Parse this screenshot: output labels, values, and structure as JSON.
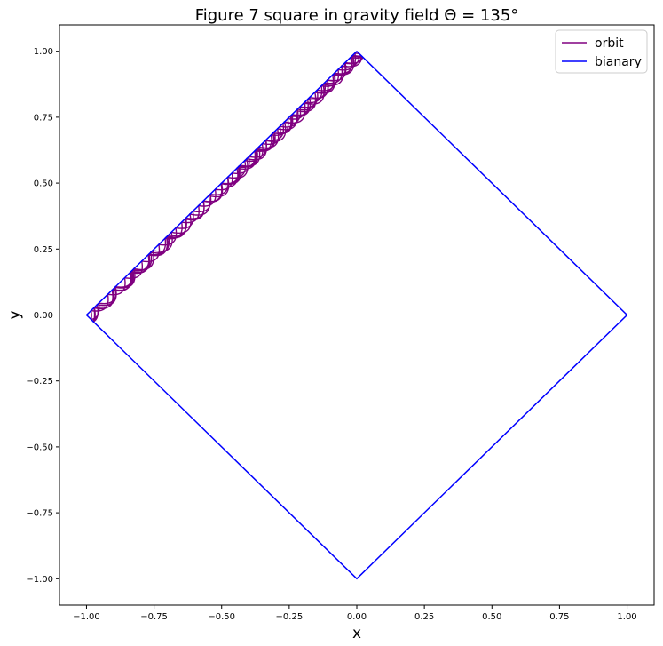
{
  "chart_data": {
    "type": "line",
    "title": "Figure 7 square in gravity field Θ = 135°",
    "xlabel": "x",
    "ylabel": "y",
    "xlim": [
      -1.1,
      1.1
    ],
    "ylim": [
      -1.1,
      1.1
    ],
    "xticks": [
      -1.0,
      -0.75,
      -0.5,
      -0.25,
      0.0,
      0.25,
      0.5,
      0.75,
      1.0
    ],
    "xtick_labels": [
      "−1.00",
      "−0.75",
      "−0.50",
      "−0.25",
      "0.00",
      "0.25",
      "0.50",
      "0.75",
      "1.00"
    ],
    "yticks": [
      -1.0,
      -0.75,
      -0.5,
      -0.25,
      0.0,
      0.25,
      0.5,
      0.75,
      1.0
    ],
    "ytick_labels": [
      "−1.00",
      "−0.75",
      "−0.50",
      "−0.25",
      "0.00",
      "0.25",
      "0.50",
      "0.75",
      "1.00"
    ],
    "grid": false,
    "legend_position": "top-right",
    "gravity_angle_deg": 135,
    "series": [
      {
        "name": "orbit",
        "color": "#800080",
        "kind": "billiard-orbit",
        "start": [
          -0.5,
          0.5
        ]
      },
      {
        "name": "bianary",
        "color": "#0000ff",
        "x": [
          0,
          1,
          0,
          -1,
          0
        ],
        "y": [
          1,
          0,
          -1,
          0,
          1
        ]
      }
    ]
  }
}
